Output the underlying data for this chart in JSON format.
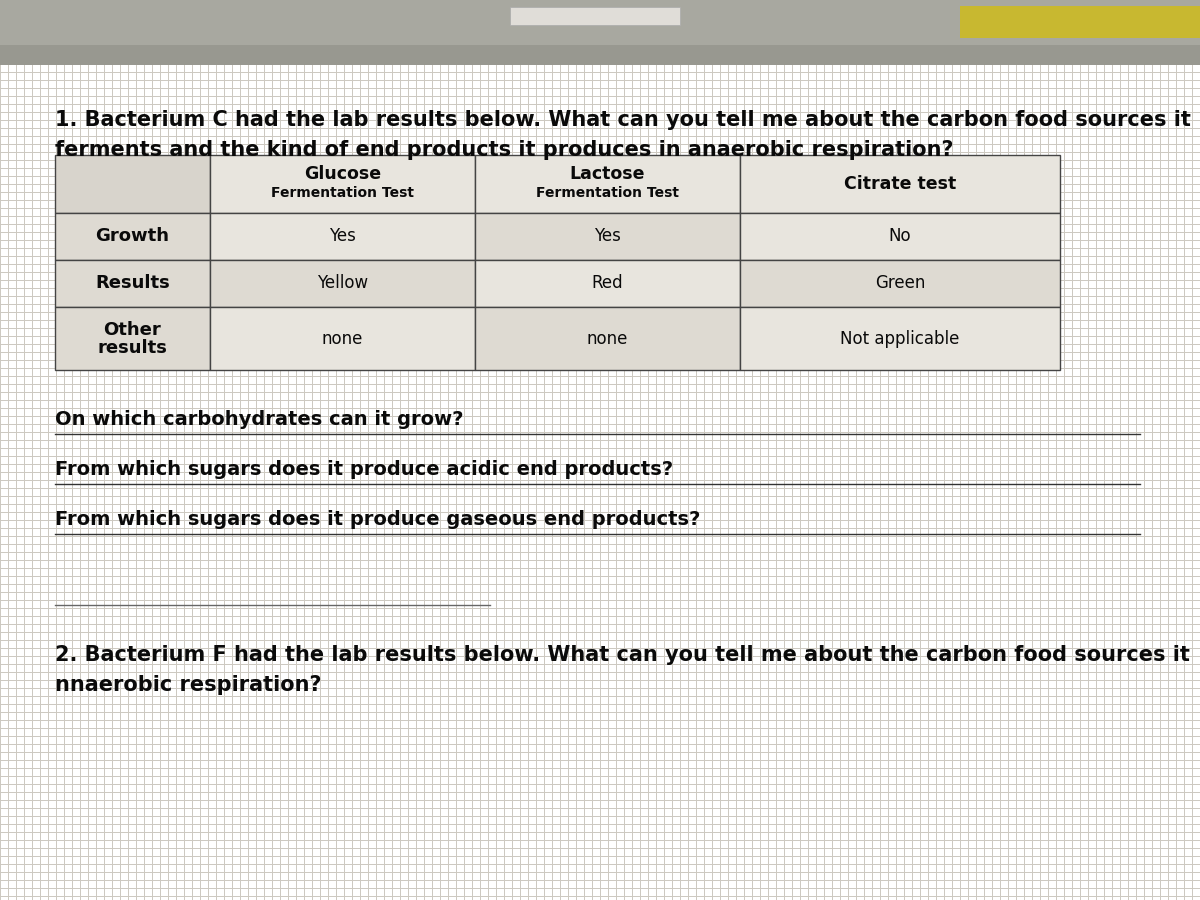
{
  "title1": "1. Bacterium C had the lab results below. What can you tell me about the carbon food sources it",
  "title1b": "ferments and the kind of end products it produces in anaerobic respiration?",
  "table_headers": [
    "",
    "Glucose\nFermentation Test",
    "Lactose\nFermentation Test",
    "Citrate test"
  ],
  "table_rows": [
    [
      "Growth",
      "Yes",
      "Yes",
      "No"
    ],
    [
      "Results",
      "Yellow",
      "Red",
      "Green"
    ],
    [
      "Other\nresults",
      "none",
      "none",
      "Not applicable"
    ]
  ],
  "questions": [
    "On which carbohydrates can it grow?",
    "From which sugars does it produce acidic end products?",
    "From which sugars does it produce gaseous end products?"
  ],
  "title2": "2. Bacterium F had the lab results below. What can you tell me about the carbon food sources it",
  "title2b": "nnaerobic respiration?",
  "bg_color_top": "#b8b8b0",
  "bg_color_main": "#d4d0c8",
  "table_bg_white": "#f0ede8",
  "table_bg_dark": "#c8c4b8",
  "border_color": "#444444",
  "text_color": "#0a0a0a",
  "line_color": "#333333",
  "top_bar1_color": "#a8a8a0",
  "top_bar2_color": "#989890",
  "yellow_color": "#c8b830",
  "separator_color": "#666666"
}
